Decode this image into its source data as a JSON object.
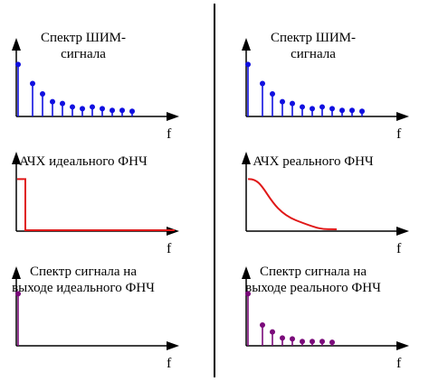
{
  "colors": {
    "input_spectrum": "#1010e0",
    "filter_response": "#e01818",
    "output_spectrum": "#7a0a7a",
    "axes": "#000000",
    "divider": "#000000"
  },
  "columns": [
    {
      "panels": [
        {
          "title_lines": [
            "Спектр ШИМ-",
            "сигнала"
          ],
          "axis_label": "f",
          "kind": "stems",
          "color_key": "input_spectrum",
          "stems": [
            0.6,
            0.38,
            0.26,
            0.17,
            0.15,
            0.11,
            0.09,
            0.11,
            0.09,
            0.07,
            0.07,
            0.06
          ]
        },
        {
          "title_lines": [
            "АЧХ идеального ФНЧ"
          ],
          "axis_label": "f",
          "kind": "ideal_lpf",
          "color_key": "filter_response",
          "level": 0.6,
          "cutoff": 0.08
        },
        {
          "title_lines": [
            "Спектр сигнала на",
            "выходе идеального ФНЧ"
          ],
          "axis_label": "f",
          "kind": "stems",
          "color_key": "output_spectrum",
          "stems": [
            0.6
          ]
        }
      ]
    },
    {
      "panels": [
        {
          "title_lines": [
            "Спектр ШИМ-",
            "сигнала"
          ],
          "axis_label": "f",
          "kind": "stems",
          "color_key": "input_spectrum",
          "stems": [
            0.6,
            0.38,
            0.26,
            0.17,
            0.15,
            0.11,
            0.09,
            0.11,
            0.09,
            0.07,
            0.07,
            0.06
          ]
        },
        {
          "title_lines": [
            "АЧХ реального ФНЧ"
          ],
          "axis_label": "f",
          "kind": "real_lpf",
          "color_key": "filter_response",
          "level": 0.6
        },
        {
          "title_lines": [
            "Спектр сигнала на",
            "выходе реального ФНЧ"
          ],
          "axis_label": "f",
          "kind": "stems",
          "color_key": "output_spectrum",
          "stems": [
            0.6,
            0.24,
            0.16,
            0.09,
            0.08,
            0.05,
            0.05,
            0.05,
            0.04
          ]
        }
      ]
    }
  ]
}
